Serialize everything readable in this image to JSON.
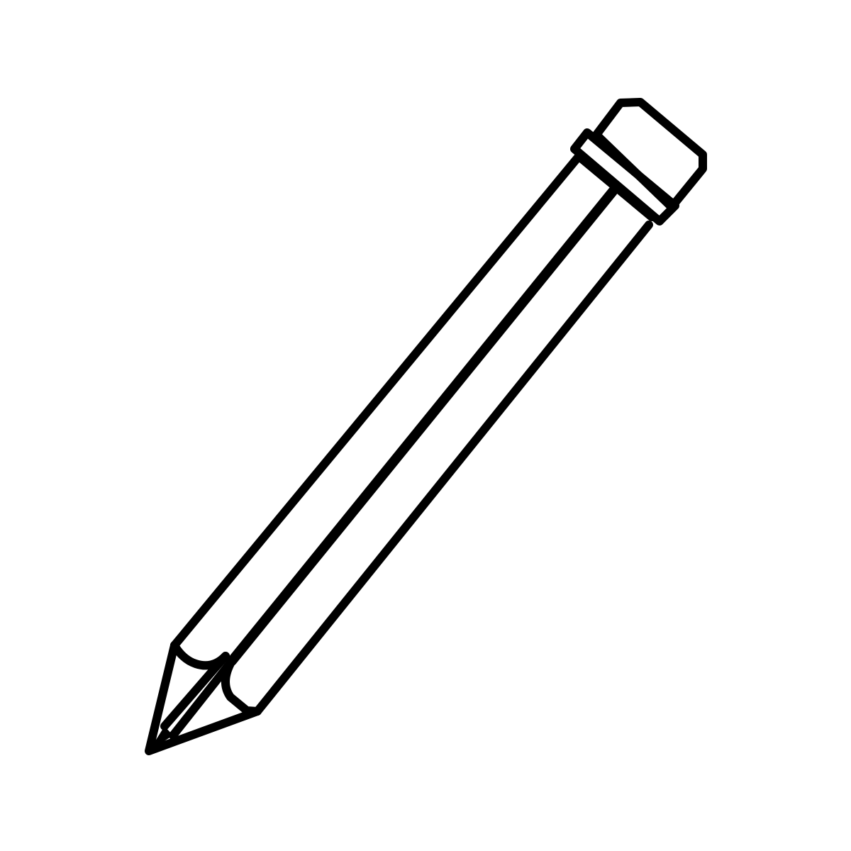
{
  "image": {
    "background_color": "#ffffff",
    "line_color": "#000000",
    "icon": "pencil-icon"
  }
}
